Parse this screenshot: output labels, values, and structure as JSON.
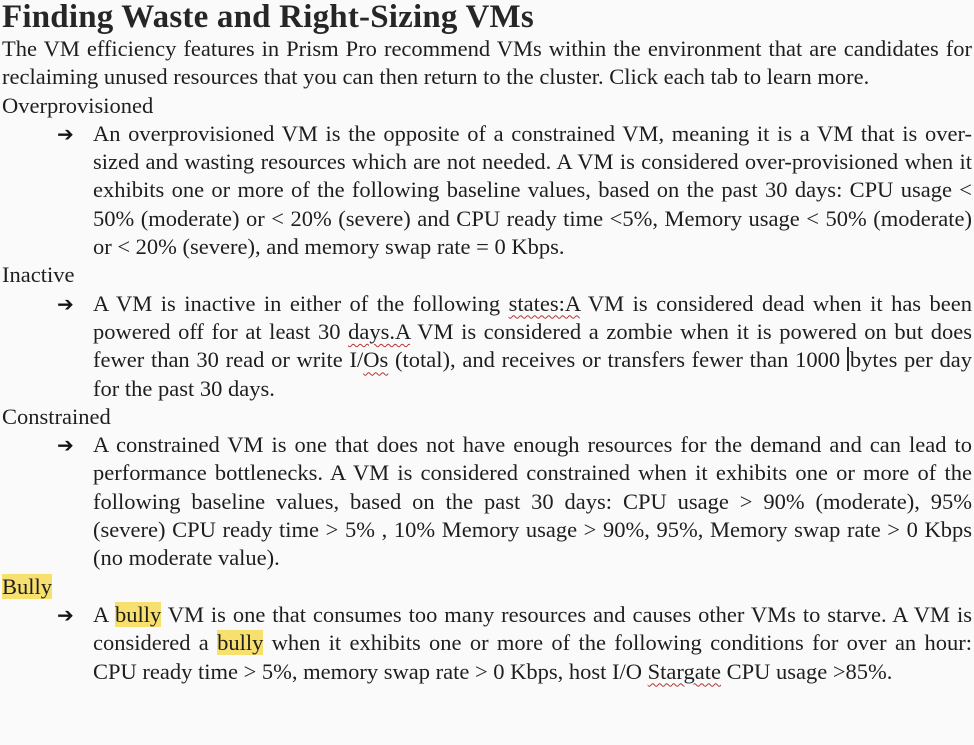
{
  "colors": {
    "background": "#fafafa",
    "text": "#1e1e1e",
    "highlight": "#f7e06e",
    "spellcheck_underline": "#b73333"
  },
  "icons": {
    "arrow_bullet": "➔",
    "text_cursor": "|"
  },
  "document": {
    "title": "Finding Waste and Right-Sizing VMs",
    "intro": "The VM efficiency features in Prism Pro recommend VMs within the environment that are candidates for reclaiming unused resources that you can then return to the cluster. Click each tab to learn more.",
    "sections": [
      {
        "heading": "Overprovisioned",
        "heading_highlight": false,
        "runs": [
          {
            "text": "An overprovisioned VM is the opposite of a constrained VM, meaning it is a VM that is over-sized and wasting resources which are not needed. A VM is considered over-provisioned when it exhibits one or more of the following baseline values, based on the past 30 days: CPU usage < 50% (moderate) or < 20% (severe) and CPU ready time <5%, Memory usage < 50% (moderate) or < 20% (severe), and memory swap rate = 0 Kbps."
          }
        ]
      },
      {
        "heading": "Inactive",
        "heading_highlight": false,
        "runs": [
          {
            "text": "A VM is inactive in either of the following "
          },
          {
            "text": "states:A",
            "squiggle": true
          },
          {
            "text": " VM is considered dead when it has been powered off for at least 30 "
          },
          {
            "text": "days.A",
            "squiggle": true
          },
          {
            "text": " VM is considered a zombie when it is powered on but does fewer than 30 read or write I/"
          },
          {
            "text": "Os",
            "squiggle": true
          },
          {
            "text": " (total), and receives or transfers fewer than 1000 "
          },
          {
            "text": "bytes per day for the past 30 days.",
            "caret_before": true
          }
        ]
      },
      {
        "heading": "Constrained",
        "heading_highlight": false,
        "runs": [
          {
            "text": "A constrained VM is one that does not have enough resources for the demand and can lead to performance bottlenecks. A VM is considered constrained when it exhibits one or more of the following baseline values, based on the past 30 days: CPU usage > 90% (moderate), 95% (severe) CPU ready time > 5% , 10% Memory usage > 90%, 95%, Memory swap rate > 0 Kbps (no moderate value)."
          }
        ]
      },
      {
        "heading": "Bully",
        "heading_highlight": true,
        "runs": [
          {
            "text": "A "
          },
          {
            "text": "bully",
            "highlight": true
          },
          {
            "text": " VM is one that consumes too many resources and causes other VMs to starve. A VM is considered a "
          },
          {
            "text": "bully",
            "highlight": true
          },
          {
            "text": " when it exhibits one or more of the following conditions for over an hour: CPU ready time > 5%, memory swap rate > 0 Kbps, host I/O "
          },
          {
            "text": "Stargate",
            "squiggle": true
          },
          {
            "text": " CPU usage >85%."
          }
        ]
      }
    ]
  }
}
